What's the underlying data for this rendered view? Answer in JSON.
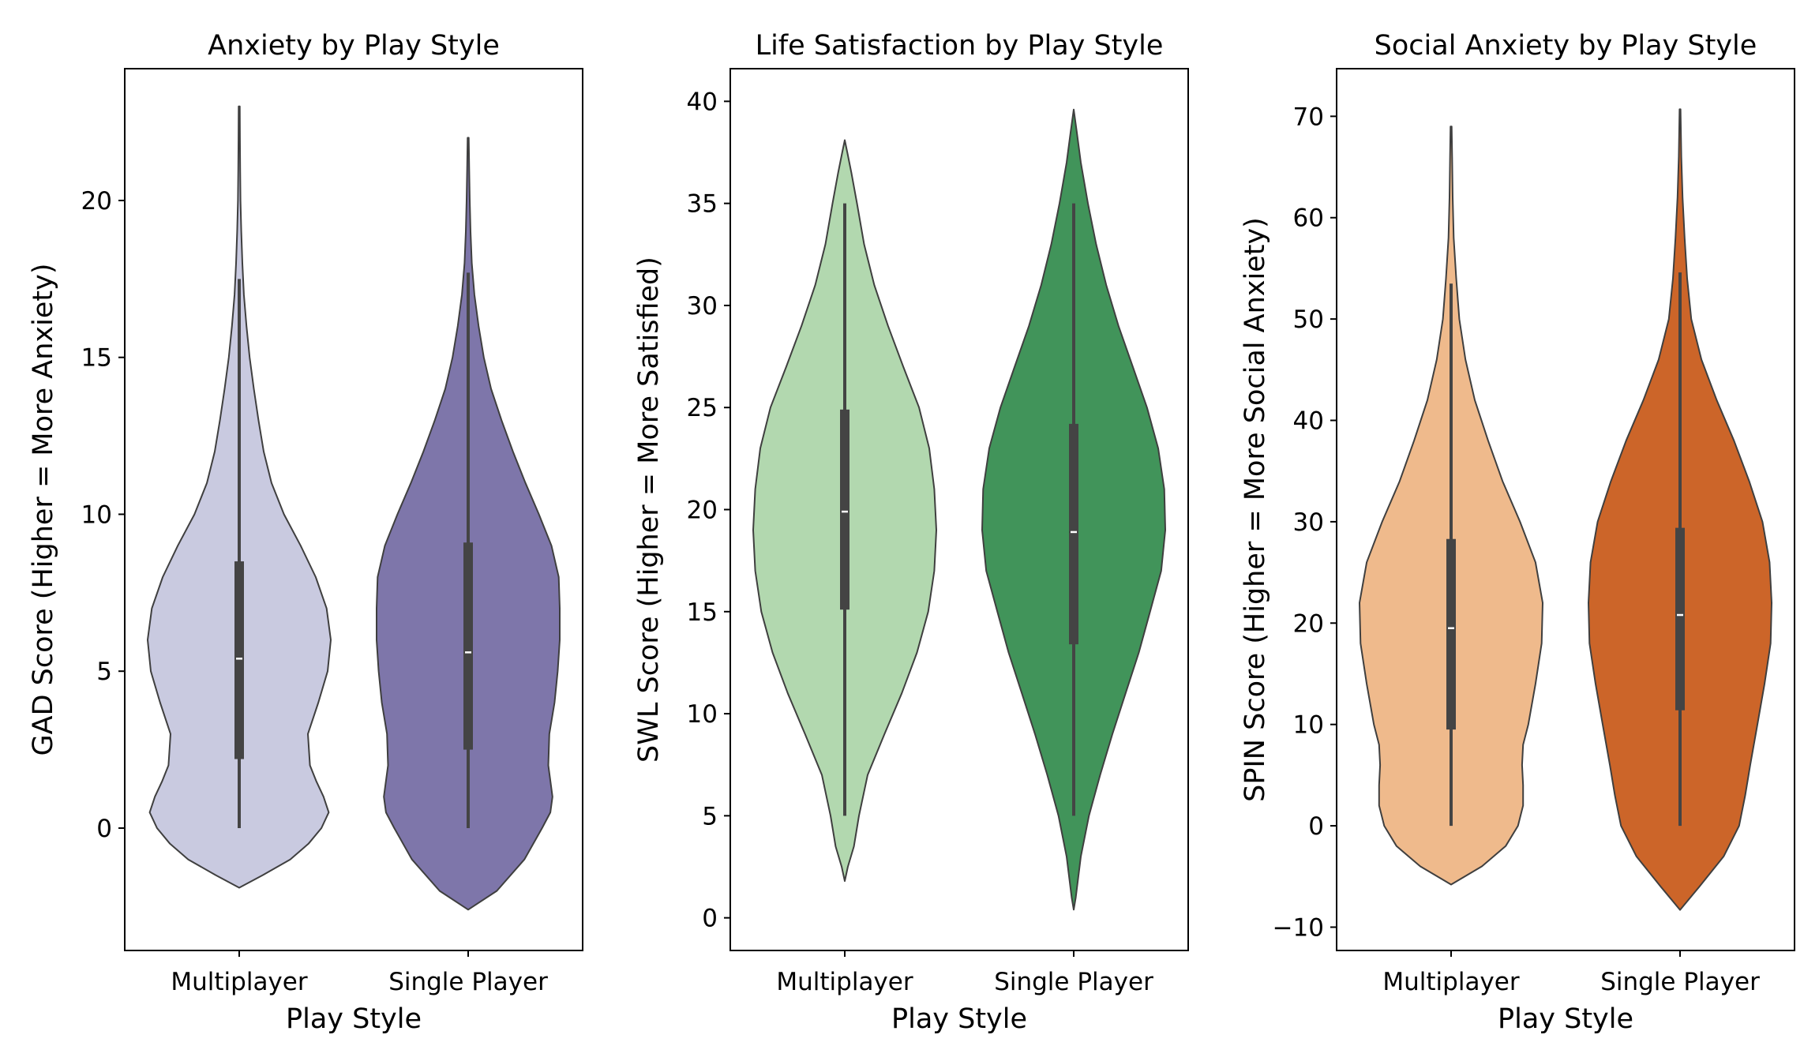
{
  "chart_data": [
    {
      "type": "violin",
      "title": "Anxiety by Play Style",
      "xlabel": "Play Style",
      "ylabel": "GAD Score (Higher = More Anxiety)",
      "ylim": [
        -3.9,
        24.2
      ],
      "yticks": [
        0,
        5,
        10,
        15,
        20
      ],
      "categories": [
        "Multiplayer",
        "Single Player"
      ],
      "colors": [
        "#c9cae0",
        "#7e76aa"
      ],
      "violins": [
        {
          "category": "Multiplayer",
          "min": 0,
          "q1": 2.2,
          "median": 5.4,
          "q3": 8.5,
          "whisker_high": 17.5,
          "max": 23,
          "density_profile": [
            [
              -1.9,
              0
            ],
            [
              -1.5,
              0.45
            ],
            [
              -1.0,
              0.98
            ],
            [
              -0.5,
              1.33
            ],
            [
              0,
              1.58
            ],
            [
              0.5,
              1.72
            ],
            [
              1.0,
              1.62
            ],
            [
              1.5,
              1.48
            ],
            [
              2.0,
              1.36
            ],
            [
              3.0,
              1.32
            ],
            [
              4.0,
              1.52
            ],
            [
              5.0,
              1.7
            ],
            [
              6.0,
              1.76
            ],
            [
              7.0,
              1.68
            ],
            [
              8.0,
              1.47
            ],
            [
              9.0,
              1.18
            ],
            [
              10.0,
              0.86
            ],
            [
              11.0,
              0.62
            ],
            [
              12.0,
              0.47
            ],
            [
              13.0,
              0.37
            ],
            [
              14.0,
              0.28
            ],
            [
              15.0,
              0.2
            ],
            [
              16.0,
              0.14
            ],
            [
              17.0,
              0.09
            ],
            [
              18.0,
              0.06
            ],
            [
              19.0,
              0.04
            ],
            [
              20.0,
              0.025
            ],
            [
              21.0,
              0.018
            ],
            [
              22.0,
              0.013
            ],
            [
              23.0,
              0.01
            ]
          ]
        },
        {
          "category": "Single Player",
          "min": 0,
          "q1": 2.5,
          "median": 5.6,
          "q3": 9.1,
          "whisker_high": 17.7,
          "max": 22,
          "density_profile": [
            [
              -2.6,
              0
            ],
            [
              -2.0,
              0.55
            ],
            [
              -1.0,
              1.08
            ],
            [
              0,
              1.42
            ],
            [
              0.5,
              1.58
            ],
            [
              1.0,
              1.62
            ],
            [
              2.0,
              1.54
            ],
            [
              3.0,
              1.56
            ],
            [
              4.0,
              1.66
            ],
            [
              5.0,
              1.72
            ],
            [
              6.0,
              1.76
            ],
            [
              7.0,
              1.76
            ],
            [
              8.0,
              1.74
            ],
            [
              9.0,
              1.6
            ],
            [
              10.0,
              1.36
            ],
            [
              11.0,
              1.1
            ],
            [
              12.0,
              0.86
            ],
            [
              13.0,
              0.64
            ],
            [
              14.0,
              0.44
            ],
            [
              15.0,
              0.3
            ],
            [
              16.0,
              0.2
            ],
            [
              17.0,
              0.12
            ],
            [
              18.0,
              0.07
            ],
            [
              19.0,
              0.045
            ],
            [
              20.0,
              0.03
            ],
            [
              21.0,
              0.02
            ],
            [
              22.0,
              0.01
            ]
          ]
        }
      ]
    },
    {
      "type": "violin",
      "title": "Life Satisfaction by Play Style",
      "xlabel": "Play Style",
      "ylabel": "SWL Score (Higher = More Satisfied)",
      "ylim": [
        -1.6,
        41.6
      ],
      "yticks": [
        0,
        5,
        10,
        15,
        20,
        25,
        30,
        35,
        40
      ],
      "categories": [
        "Multiplayer",
        "Single Player"
      ],
      "colors": [
        "#b2d8af",
        "#41945a"
      ],
      "violins": [
        {
          "category": "Multiplayer",
          "min": 5,
          "q1": 15.1,
          "median": 19.9,
          "q3": 24.9,
          "whisker_high": 35,
          "max": 38,
          "density_profile": [
            [
              1.8,
              0
            ],
            [
              2.5,
              0.06
            ],
            [
              3.5,
              0.18
            ],
            [
              5.0,
              0.28
            ],
            [
              7.0,
              0.45
            ],
            [
              9.0,
              0.78
            ],
            [
              11.0,
              1.12
            ],
            [
              13.0,
              1.42
            ],
            [
              15.0,
              1.64
            ],
            [
              17.0,
              1.76
            ],
            [
              19.0,
              1.8
            ],
            [
              21.0,
              1.76
            ],
            [
              23.0,
              1.66
            ],
            [
              25.0,
              1.46
            ],
            [
              27.0,
              1.15
            ],
            [
              29.0,
              0.85
            ],
            [
              31.0,
              0.58
            ],
            [
              33.0,
              0.38
            ],
            [
              35.0,
              0.24
            ],
            [
              36.5,
              0.13
            ],
            [
              37.5,
              0.05
            ],
            [
              38.1,
              0
            ]
          ]
        },
        {
          "category": "Single Player",
          "min": 5,
          "q1": 13.4,
          "median": 18.9,
          "q3": 24.2,
          "whisker_high": 35,
          "max": 39.6,
          "density_profile": [
            [
              0.4,
              0
            ],
            [
              1.0,
              0.04
            ],
            [
              3.0,
              0.14
            ],
            [
              5.0,
              0.3
            ],
            [
              7.0,
              0.52
            ],
            [
              9.0,
              0.76
            ],
            [
              11.0,
              1.02
            ],
            [
              13.0,
              1.28
            ],
            [
              15.0,
              1.5
            ],
            [
              17.0,
              1.72
            ],
            [
              19.0,
              1.8
            ],
            [
              21.0,
              1.78
            ],
            [
              23.0,
              1.66
            ],
            [
              25.0,
              1.44
            ],
            [
              27.0,
              1.16
            ],
            [
              29.0,
              0.88
            ],
            [
              31.0,
              0.64
            ],
            [
              33.0,
              0.44
            ],
            [
              35.0,
              0.28
            ],
            [
              37.0,
              0.14
            ],
            [
              38.5,
              0.06
            ],
            [
              39.6,
              0
            ]
          ]
        }
      ]
    },
    {
      "type": "violin",
      "title": "Social Anxiety by Play Style",
      "xlabel": "Play Style",
      "ylabel": "SPIN Score (Higher = More Social Anxiety)",
      "ylim": [
        -12.3,
        74.7
      ],
      "yticks": [
        -10,
        0,
        10,
        20,
        30,
        40,
        50,
        60,
        70
      ],
      "categories": [
        "Multiplayer",
        "Single Player"
      ],
      "colors": [
        "#efba8c",
        "#cc6529"
      ],
      "violins": [
        {
          "category": "Multiplayer",
          "min": 0,
          "q1": 9.5,
          "median": 19.5,
          "q3": 28.3,
          "whisker_high": 53.5,
          "max": 69,
          "density_profile": [
            [
              -5.8,
              0
            ],
            [
              -4.0,
              0.6
            ],
            [
              -2.0,
              1.06
            ],
            [
              0,
              1.3
            ],
            [
              2.0,
              1.4
            ],
            [
              4.0,
              1.4
            ],
            [
              6.0,
              1.38
            ],
            [
              8.0,
              1.4
            ],
            [
              10.0,
              1.5
            ],
            [
              14.0,
              1.64
            ],
            [
              18.0,
              1.76
            ],
            [
              22.0,
              1.78
            ],
            [
              26.0,
              1.64
            ],
            [
              30.0,
              1.34
            ],
            [
              34.0,
              1.0
            ],
            [
              38.0,
              0.72
            ],
            [
              42.0,
              0.46
            ],
            [
              46.0,
              0.28
            ],
            [
              50.0,
              0.16
            ],
            [
              54.0,
              0.1
            ],
            [
              58.0,
              0.05
            ],
            [
              62.0,
              0.03
            ],
            [
              66.0,
              0.02
            ],
            [
              69.0,
              0.01
            ]
          ]
        },
        {
          "category": "Single Player",
          "min": 0,
          "q1": 11.4,
          "median": 20.8,
          "q3": 29.4,
          "whisker_high": 54.6,
          "max": 70.7,
          "density_profile": [
            [
              -8.3,
              0
            ],
            [
              -6.0,
              0.38
            ],
            [
              -3.0,
              0.86
            ],
            [
              0,
              1.16
            ],
            [
              3.0,
              1.28
            ],
            [
              6.0,
              1.38
            ],
            [
              10.0,
              1.52
            ],
            [
              14.0,
              1.66
            ],
            [
              18.0,
              1.78
            ],
            [
              22.0,
              1.8
            ],
            [
              26.0,
              1.76
            ],
            [
              30.0,
              1.62
            ],
            [
              34.0,
              1.36
            ],
            [
              38.0,
              1.06
            ],
            [
              42.0,
              0.72
            ],
            [
              46.0,
              0.42
            ],
            [
              50.0,
              0.22
            ],
            [
              54.0,
              0.14
            ],
            [
              58.0,
              0.09
            ],
            [
              62.0,
              0.05
            ],
            [
              66.0,
              0.025
            ],
            [
              70.7,
              0.01
            ]
          ]
        }
      ]
    }
  ]
}
